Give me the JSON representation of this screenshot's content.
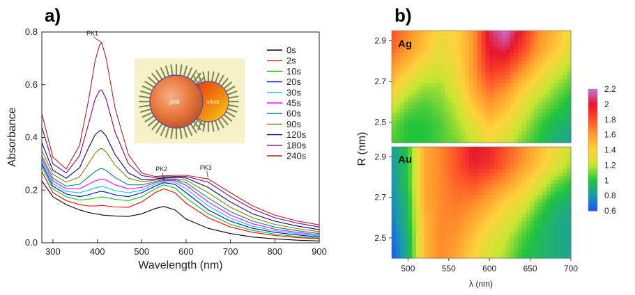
{
  "chart_data": [
    {
      "panel": "a)",
      "type": "line",
      "xlabel": "Wavelength (nm)",
      "ylabel": "Absorbance",
      "xlim": [
        275,
        900
      ],
      "ylim": [
        0.0,
        0.8
      ],
      "xticks": [
        "300",
        "400",
        "500",
        "600",
        "700",
        "800",
        "900"
      ],
      "yticks": [
        "0.0",
        "0.2",
        "0.4",
        "0.6",
        "0.8"
      ],
      "legend_position": "right",
      "annotations": [
        {
          "text": "PK1",
          "x": 410,
          "y": 0.76
        },
        {
          "text": "PK2",
          "x": 550,
          "y": 0.235
        },
        {
          "text": "PK3",
          "x": 650,
          "y": 0.24
        }
      ],
      "inset": {
        "left_label": "gold",
        "right_label": "silver"
      },
      "x": [
        275,
        300,
        330,
        360,
        380,
        395,
        405,
        410,
        420,
        440,
        470,
        500,
        530,
        550,
        575,
        600,
        650,
        700,
        750,
        800,
        850,
        900
      ],
      "series": [
        {
          "name": "0s",
          "color": "#000000",
          "values": [
            0.235,
            0.175,
            0.145,
            0.125,
            0.115,
            0.11,
            0.108,
            0.106,
            0.104,
            0.102,
            0.1,
            0.11,
            0.13,
            0.138,
            0.125,
            0.09,
            0.055,
            0.035,
            0.022,
            0.015,
            0.01,
            0.007
          ]
        },
        {
          "name": "2s",
          "color": "#ff0000",
          "values": [
            0.27,
            0.19,
            0.16,
            0.145,
            0.14,
            0.14,
            0.141,
            0.142,
            0.14,
            0.136,
            0.135,
            0.155,
            0.19,
            0.205,
            0.19,
            0.15,
            0.095,
            0.06,
            0.04,
            0.028,
            0.02,
            0.015
          ]
        },
        {
          "name": "10s",
          "color": "#00cc00",
          "values": [
            0.29,
            0.205,
            0.175,
            0.162,
            0.165,
            0.17,
            0.173,
            0.174,
            0.172,
            0.165,
            0.16,
            0.175,
            0.205,
            0.22,
            0.208,
            0.17,
            0.11,
            0.07,
            0.047,
            0.033,
            0.024,
            0.018
          ]
        },
        {
          "name": "20s",
          "color": "#0000ff",
          "values": [
            0.3,
            0.215,
            0.185,
            0.175,
            0.182,
            0.19,
            0.194,
            0.195,
            0.192,
            0.182,
            0.175,
            0.19,
            0.215,
            0.228,
            0.222,
            0.19,
            0.125,
            0.082,
            0.055,
            0.04,
            0.03,
            0.022
          ]
        },
        {
          "name": "30s",
          "color": "#00cccc",
          "values": [
            0.31,
            0.225,
            0.195,
            0.19,
            0.2,
            0.208,
            0.212,
            0.213,
            0.21,
            0.198,
            0.19,
            0.2,
            0.222,
            0.232,
            0.23,
            0.205,
            0.14,
            0.093,
            0.063,
            0.046,
            0.035,
            0.026
          ]
        },
        {
          "name": "45s",
          "color": "#ff00ff",
          "values": [
            0.32,
            0.235,
            0.205,
            0.205,
            0.222,
            0.235,
            0.24,
            0.242,
            0.238,
            0.22,
            0.205,
            0.21,
            0.228,
            0.236,
            0.236,
            0.218,
            0.155,
            0.105,
            0.072,
            0.052,
            0.04,
            0.03
          ]
        },
        {
          "name": "60s",
          "color": "#008080",
          "values": [
            0.33,
            0.245,
            0.215,
            0.222,
            0.25,
            0.27,
            0.28,
            0.282,
            0.275,
            0.248,
            0.22,
            0.22,
            0.232,
            0.24,
            0.24,
            0.228,
            0.17,
            0.118,
            0.082,
            0.06,
            0.046,
            0.035
          ]
        },
        {
          "name": "90s",
          "color": "#808000",
          "values": [
            0.35,
            0.26,
            0.23,
            0.25,
            0.3,
            0.34,
            0.355,
            0.358,
            0.345,
            0.295,
            0.245,
            0.232,
            0.238,
            0.243,
            0.243,
            0.238,
            0.19,
            0.135,
            0.095,
            0.07,
            0.054,
            0.042
          ]
        },
        {
          "name": "120s",
          "color": "#000080",
          "values": [
            0.38,
            0.275,
            0.245,
            0.285,
            0.36,
            0.41,
            0.425,
            0.425,
            0.405,
            0.335,
            0.265,
            0.24,
            0.242,
            0.246,
            0.248,
            0.246,
            0.21,
            0.155,
            0.11,
            0.082,
            0.064,
            0.05
          ]
        },
        {
          "name": "180s",
          "color": "#800080",
          "values": [
            0.44,
            0.3,
            0.265,
            0.33,
            0.45,
            0.545,
            0.578,
            0.58,
            0.545,
            0.42,
            0.3,
            0.255,
            0.248,
            0.25,
            0.252,
            0.252,
            0.23,
            0.175,
            0.128,
            0.095,
            0.075,
            0.06
          ]
        },
        {
          "name": "240s",
          "color": "#b22222",
          "values": [
            0.49,
            0.325,
            0.28,
            0.37,
            0.54,
            0.69,
            0.75,
            0.76,
            0.7,
            0.51,
            0.335,
            0.265,
            0.252,
            0.254,
            0.256,
            0.256,
            0.242,
            0.19,
            0.14,
            0.105,
            0.083,
            0.068
          ]
        }
      ]
    },
    {
      "panel": "b)",
      "type": "heatmap",
      "xlabel": "λ (nm)",
      "ylabel": "R (nm)",
      "xlim": [
        480,
        700
      ],
      "xticks": [
        "500",
        "550",
        "600",
        "650",
        "700"
      ],
      "yticks": [
        "2.5",
        "2.7",
        "2.9"
      ],
      "colorbar": {
        "range": [
          0.6,
          2.2
        ],
        "ticks": [
          "2.2",
          "2",
          "1.8",
          "1.6",
          "1.4",
          "1.2",
          "1",
          "0.8",
          "0.6"
        ],
        "stops": [
          {
            "v": 0.6,
            "color": "#1e50ff"
          },
          {
            "v": 0.8,
            "color": "#1a9bb0"
          },
          {
            "v": 1.0,
            "color": "#22c43c"
          },
          {
            "v": 1.2,
            "color": "#c8e632"
          },
          {
            "v": 1.4,
            "color": "#ffd23c"
          },
          {
            "v": 1.6,
            "color": "#ff9c2d"
          },
          {
            "v": 1.8,
            "color": "#ff5028"
          },
          {
            "v": 2.0,
            "color": "#e6142d"
          },
          {
            "v": 2.2,
            "color": "#c878dc"
          }
        ]
      },
      "maps": [
        {
          "label": "Ag",
          "R": [
            2.4,
            2.5,
            2.6,
            2.7,
            2.8,
            2.9,
            2.95
          ],
          "lambda": [
            480,
            500,
            520,
            540,
            560,
            580,
            600,
            620,
            640,
            660,
            680,
            700
          ],
          "z": [
            [
              1.05,
              1.0,
              1.0,
              1.05,
              1.1,
              1.2,
              1.35,
              1.25,
              1.1,
              1.0,
              0.9,
              0.85
            ],
            [
              1.1,
              1.0,
              1.0,
              1.05,
              1.15,
              1.3,
              1.45,
              1.35,
              1.2,
              1.05,
              0.95,
              0.9
            ],
            [
              1.25,
              1.1,
              1.05,
              1.1,
              1.2,
              1.45,
              1.6,
              1.5,
              1.3,
              1.15,
              1.05,
              0.95
            ],
            [
              1.45,
              1.25,
              1.15,
              1.15,
              1.3,
              1.55,
              1.75,
              1.65,
              1.45,
              1.3,
              1.15,
              1.05
            ],
            [
              1.6,
              1.45,
              1.3,
              1.25,
              1.35,
              1.6,
              1.9,
              1.85,
              1.65,
              1.45,
              1.3,
              1.15
            ],
            [
              1.75,
              1.6,
              1.45,
              1.3,
              1.4,
              1.6,
              2.0,
              2.05,
              1.85,
              1.6,
              1.45,
              1.3
            ],
            [
              1.8,
              1.65,
              1.5,
              1.35,
              1.4,
              1.6,
              2.05,
              2.2,
              1.95,
              1.65,
              1.5,
              1.35
            ]
          ]
        },
        {
          "label": "Au",
          "R": [
            2.4,
            2.5,
            2.6,
            2.7,
            2.8,
            2.9,
            2.95
          ],
          "lambda": [
            480,
            500,
            520,
            540,
            560,
            580,
            600,
            620,
            640,
            660,
            680,
            700
          ],
          "z": [
            [
              0.6,
              0.9,
              1.5,
              1.65,
              1.55,
              1.4,
              1.25,
              1.15,
              1.0,
              0.95,
              0.9,
              0.85
            ],
            [
              0.65,
              0.9,
              1.5,
              1.65,
              1.6,
              1.45,
              1.3,
              1.2,
              1.05,
              0.95,
              0.9,
              0.85
            ],
            [
              0.7,
              0.95,
              1.5,
              1.65,
              1.65,
              1.55,
              1.4,
              1.3,
              1.15,
              1.0,
              0.9,
              0.85
            ],
            [
              0.75,
              0.95,
              1.55,
              1.65,
              1.7,
              1.65,
              1.55,
              1.4,
              1.3,
              1.1,
              0.95,
              0.9
            ],
            [
              0.78,
              1.0,
              1.55,
              1.65,
              1.75,
              1.8,
              1.7,
              1.6,
              1.45,
              1.3,
              1.1,
              1.0
            ],
            [
              0.8,
              1.0,
              1.55,
              1.65,
              1.8,
              1.95,
              1.9,
              1.75,
              1.6,
              1.45,
              1.3,
              1.15
            ],
            [
              0.82,
              1.0,
              1.55,
              1.65,
              1.8,
              2.0,
              1.95,
              1.8,
              1.65,
              1.5,
              1.35,
              1.2
            ]
          ]
        }
      ]
    }
  ]
}
